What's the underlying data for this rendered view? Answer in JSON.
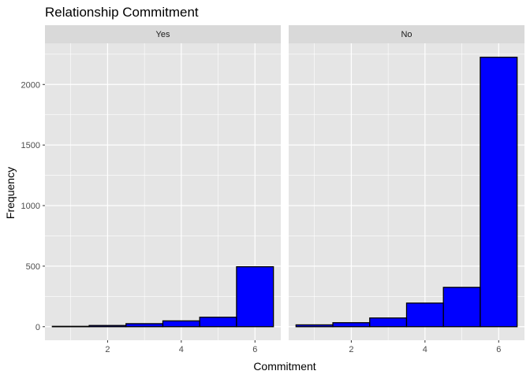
{
  "chart_data": {
    "type": "bar",
    "title": "Relationship Commitment",
    "xlabel": "Commitment",
    "ylabel": "Frequency",
    "ylim": [
      -112,
      2340
    ],
    "xlim": [
      0.3,
      6.7
    ],
    "x_ticks": [
      2,
      4,
      6
    ],
    "y_ticks": [
      0,
      500,
      1000,
      1500,
      2000
    ],
    "bin_width": 1,
    "grid": true,
    "colors": {
      "fill": "#0000ff",
      "outline": "#000000",
      "panel_bg": "#e5e5e5",
      "strip_bg": "#d9d9d9",
      "grid": "#ffffff"
    },
    "facets": [
      {
        "label": "Yes",
        "bins": [
          {
            "x": 1,
            "value": 3
          },
          {
            "x": 2,
            "value": 10
          },
          {
            "x": 3,
            "value": 25
          },
          {
            "x": 4,
            "value": 48
          },
          {
            "x": 5,
            "value": 78
          },
          {
            "x": 6,
            "value": 495
          }
        ]
      },
      {
        "label": "No",
        "bins": [
          {
            "x": 1,
            "value": 15
          },
          {
            "x": 2,
            "value": 33
          },
          {
            "x": 3,
            "value": 72
          },
          {
            "x": 4,
            "value": 195
          },
          {
            "x": 5,
            "value": 325
          },
          {
            "x": 6,
            "value": 2225
          }
        ]
      }
    ]
  }
}
